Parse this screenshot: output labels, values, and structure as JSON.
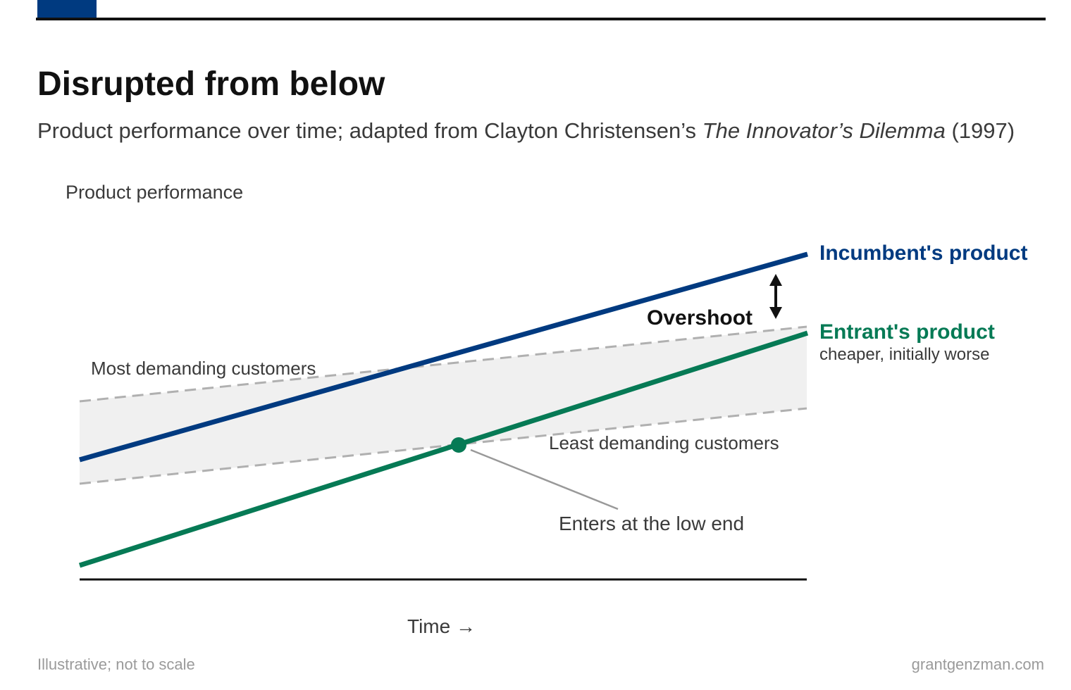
{
  "header": {
    "title": "Disrupted from below",
    "subtitle_prefix": "Product performance over time; adapted from Clayton Christensen’s ",
    "subtitle_book": "The Innovator’s Dilemma",
    "subtitle_suffix": " (1997)"
  },
  "diagram": {
    "y_axis_label": "Product performance",
    "x_axis_label": "Time →",
    "lines": {
      "incumbent": {
        "label": "Incumbent's product",
        "color": "#003a80"
      },
      "entrant": {
        "label": "Entrant's product",
        "sublabel": "cheaper, initially worse",
        "color": "#067a55"
      },
      "most_demanding": {
        "label": "Most demanding customers",
        "color": "#b0b0b0"
      },
      "least_demanding": {
        "label": "Least demanding customers",
        "color": "#b0b0b0"
      }
    },
    "band_color": "#f0f0f0",
    "annotations": {
      "overshoot": "Overshoot",
      "entry_point": "Enters at the low end"
    }
  },
  "footer": {
    "note": "Illustrative; not to scale",
    "source": "grantgenzman.com"
  }
}
